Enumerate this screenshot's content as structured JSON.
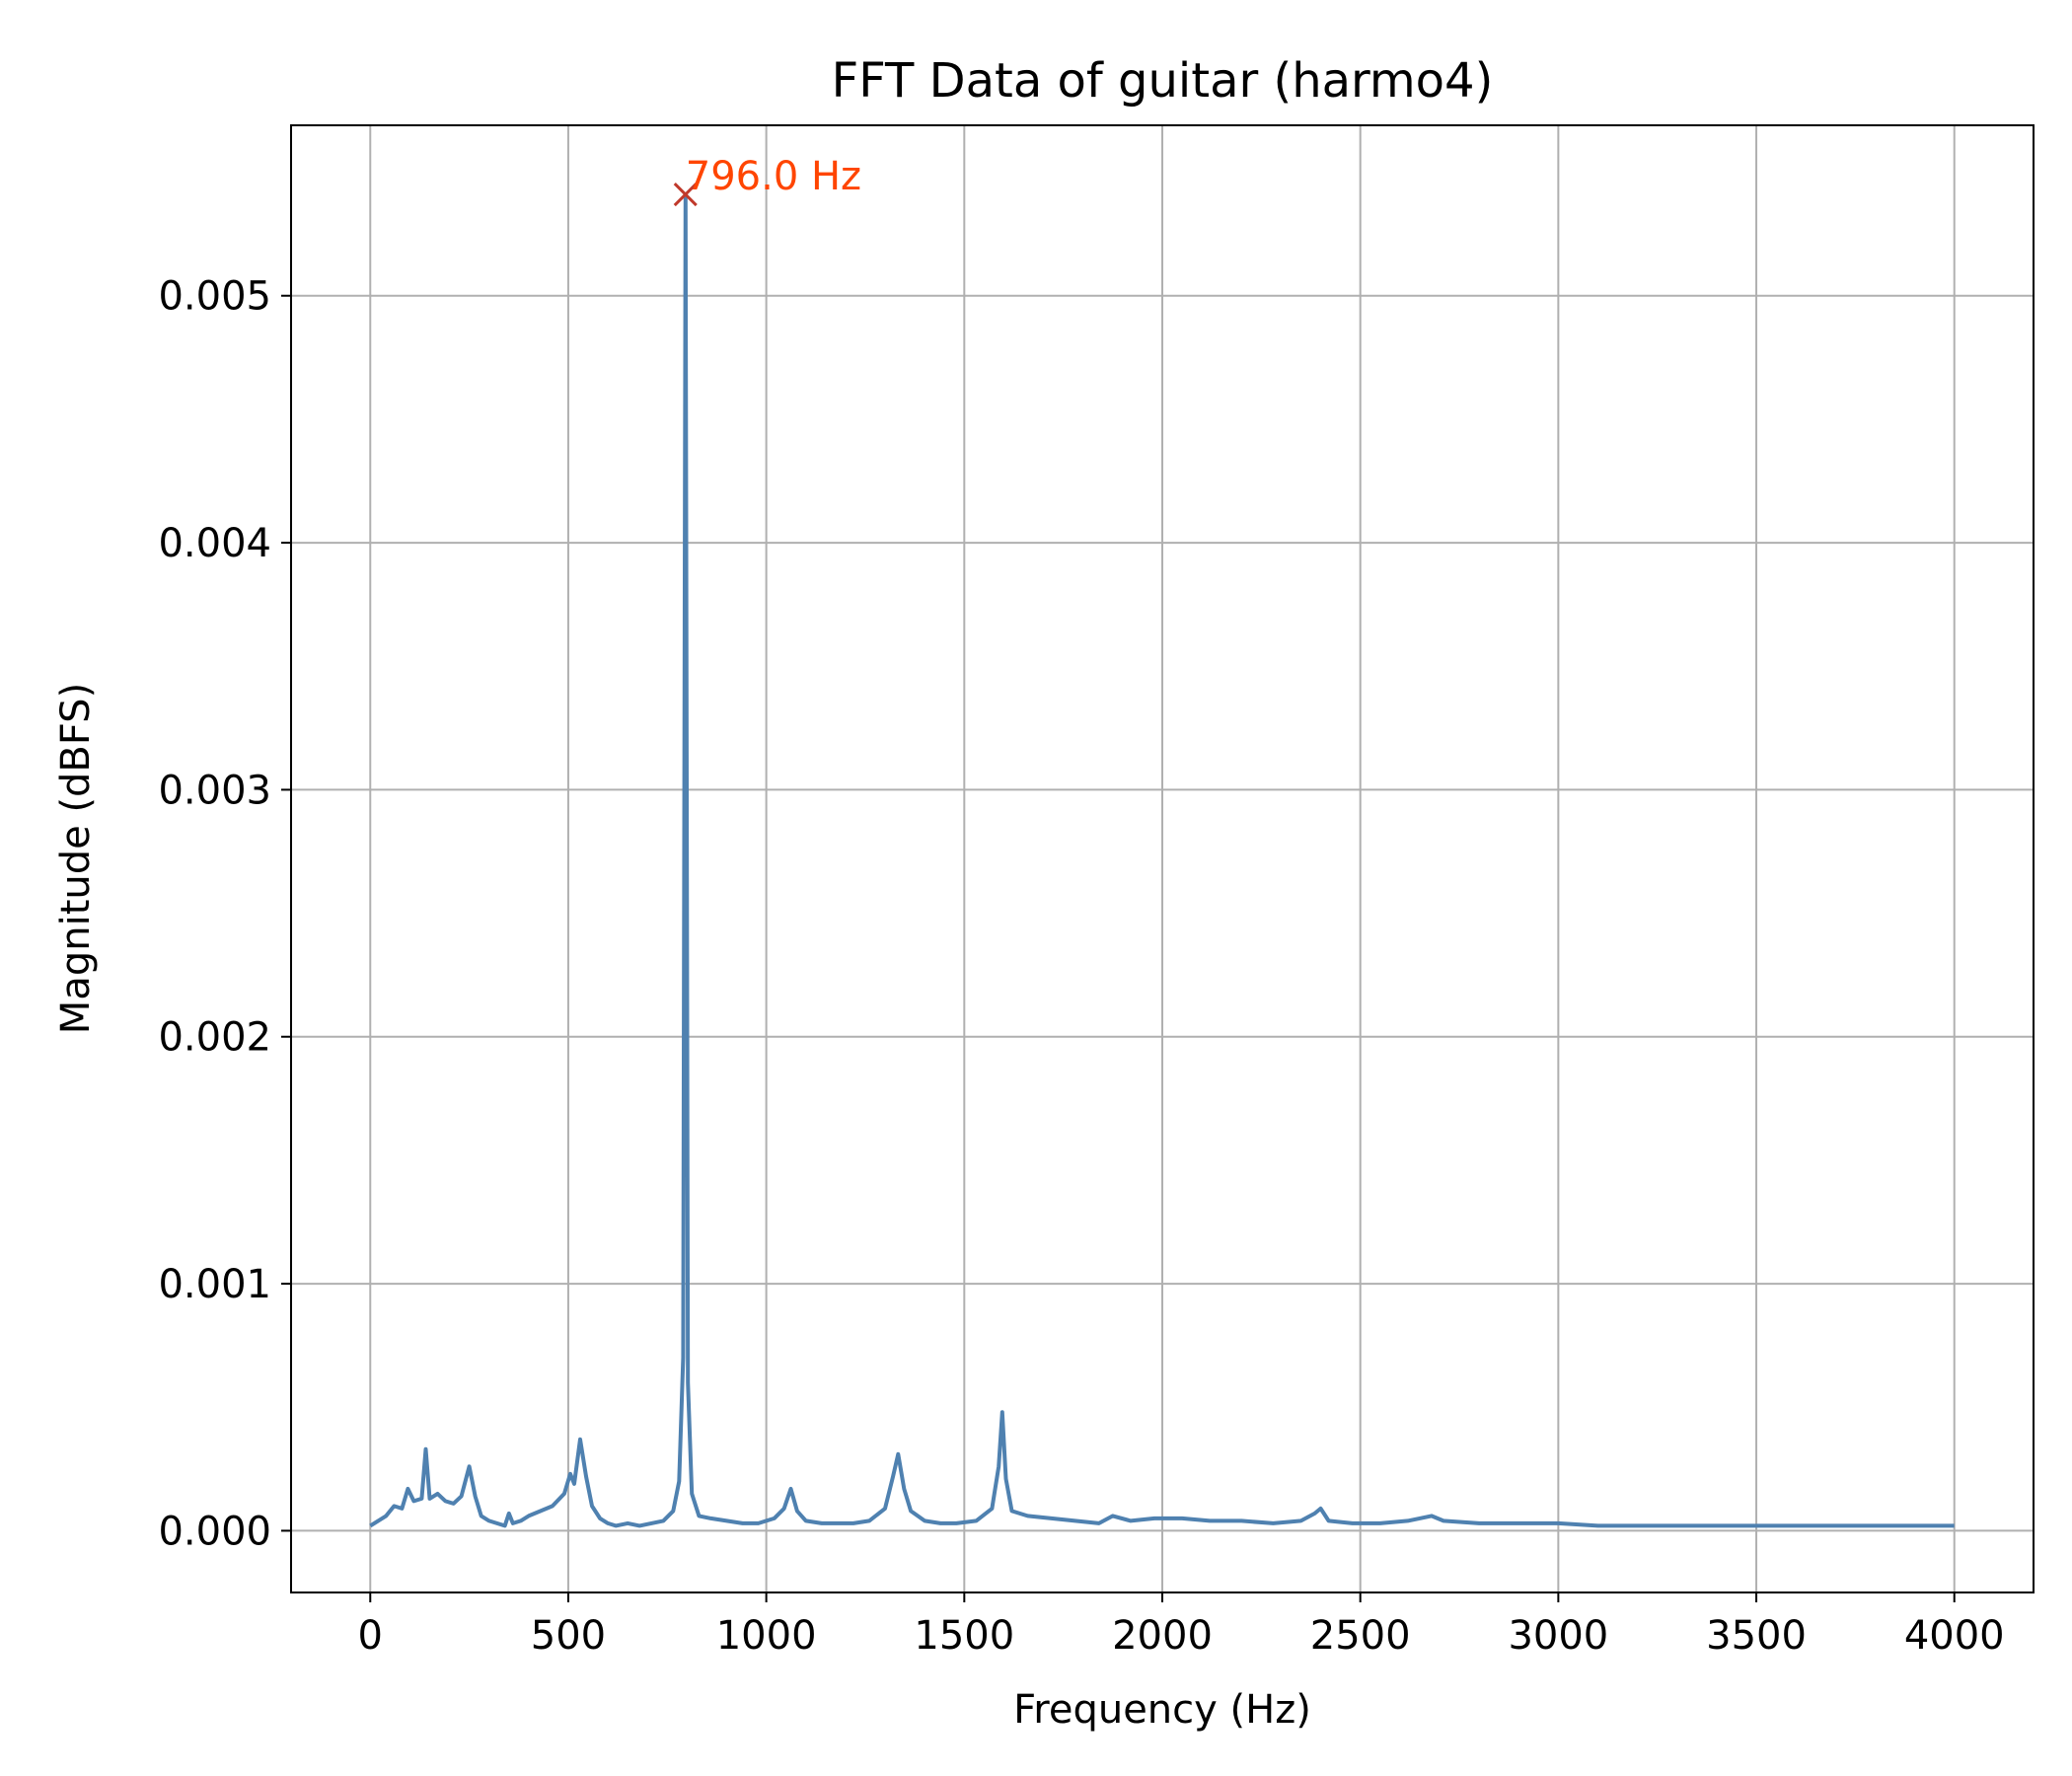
{
  "chart_data": {
    "type": "line",
    "title": "FFT Data of guitar (harmo4)",
    "xlabel": "Frequency (Hz)",
    "ylabel": "Magnitude (dBFS)",
    "xlim": [
      -200,
      4200
    ],
    "ylim": [
      -0.00025,
      0.00569
    ],
    "xticks": [
      0,
      500,
      1000,
      1500,
      2000,
      2500,
      3000,
      3500,
      4000
    ],
    "xtick_labels": [
      "0",
      "500",
      "1000",
      "1500",
      "2000",
      "2500",
      "3000",
      "3500",
      "4000"
    ],
    "yticks": [
      0,
      0.001,
      0.002,
      0.003,
      0.004,
      0.005
    ],
    "ytick_labels": [
      "0.000",
      "0.001",
      "0.002",
      "0.003",
      "0.004",
      "0.005"
    ],
    "grid": true,
    "colors": {
      "line": "#4f81b0",
      "marker": "#c0392b",
      "annotation": "#ff4500",
      "grid": "#b0b0b0"
    },
    "series": [
      {
        "points": [
          [
            0,
            2e-05
          ],
          [
            20,
            4e-05
          ],
          [
            40,
            6e-05
          ],
          [
            60,
            0.0001
          ],
          [
            80,
            9e-05
          ],
          [
            95,
            0.00017
          ],
          [
            110,
            0.00012
          ],
          [
            130,
            0.00013
          ],
          [
            140,
            0.00033
          ],
          [
            150,
            0.00013
          ],
          [
            170,
            0.00015
          ],
          [
            190,
            0.00012
          ],
          [
            210,
            0.00011
          ],
          [
            230,
            0.00014
          ],
          [
            250,
            0.00026
          ],
          [
            265,
            0.00014
          ],
          [
            280,
            6e-05
          ],
          [
            300,
            4e-05
          ],
          [
            320,
            3e-05
          ],
          [
            340,
            2e-05
          ],
          [
            350,
            7e-05
          ],
          [
            360,
            3e-05
          ],
          [
            380,
            4e-05
          ],
          [
            400,
            6e-05
          ],
          [
            430,
            8e-05
          ],
          [
            460,
            0.0001
          ],
          [
            490,
            0.00015
          ],
          [
            505,
            0.00023
          ],
          [
            515,
            0.00019
          ],
          [
            530,
            0.00037
          ],
          [
            545,
            0.00022
          ],
          [
            560,
            0.0001
          ],
          [
            580,
            5e-05
          ],
          [
            600,
            3e-05
          ],
          [
            620,
            2e-05
          ],
          [
            650,
            3e-05
          ],
          [
            680,
            2e-05
          ],
          [
            710,
            3e-05
          ],
          [
            740,
            4e-05
          ],
          [
            765,
            8e-05
          ],
          [
            780,
            0.0002
          ],
          [
            790,
            0.0007
          ],
          [
            796,
            0.00541
          ],
          [
            802,
            0.0006
          ],
          [
            812,
            0.00015
          ],
          [
            830,
            6e-05
          ],
          [
            860,
            5e-05
          ],
          [
            900,
            4e-05
          ],
          [
            940,
            3e-05
          ],
          [
            980,
            3e-05
          ],
          [
            1020,
            5e-05
          ],
          [
            1045,
            9e-05
          ],
          [
            1062,
            0.00017
          ],
          [
            1078,
            8e-05
          ],
          [
            1100,
            4e-05
          ],
          [
            1140,
            3e-05
          ],
          [
            1180,
            3e-05
          ],
          [
            1220,
            3e-05
          ],
          [
            1260,
            4e-05
          ],
          [
            1300,
            9e-05
          ],
          [
            1320,
            0.00022
          ],
          [
            1333,
            0.00031
          ],
          [
            1348,
            0.00017
          ],
          [
            1365,
            8e-05
          ],
          [
            1400,
            4e-05
          ],
          [
            1440,
            3e-05
          ],
          [
            1480,
            3e-05
          ],
          [
            1530,
            4e-05
          ],
          [
            1570,
            9e-05
          ],
          [
            1587,
            0.00026
          ],
          [
            1596,
            0.00048
          ],
          [
            1605,
            0.00021
          ],
          [
            1620,
            8e-05
          ],
          [
            1660,
            6e-05
          ],
          [
            1720,
            5e-05
          ],
          [
            1780,
            4e-05
          ],
          [
            1840,
            3e-05
          ],
          [
            1875,
            6e-05
          ],
          [
            1920,
            4e-05
          ],
          [
            1980,
            5e-05
          ],
          [
            2050,
            5e-05
          ],
          [
            2120,
            4e-05
          ],
          [
            2200,
            4e-05
          ],
          [
            2280,
            3e-05
          ],
          [
            2350,
            4e-05
          ],
          [
            2385,
            7e-05
          ],
          [
            2400,
            9e-05
          ],
          [
            2420,
            4e-05
          ],
          [
            2480,
            3e-05
          ],
          [
            2550,
            3e-05
          ],
          [
            2620,
            4e-05
          ],
          [
            2680,
            6e-05
          ],
          [
            2710,
            4e-05
          ],
          [
            2800,
            3e-05
          ],
          [
            2900,
            3e-05
          ],
          [
            3000,
            3e-05
          ],
          [
            3100,
            2e-05
          ],
          [
            3200,
            2e-05
          ],
          [
            3300,
            2e-05
          ],
          [
            3400,
            2e-05
          ],
          [
            3500,
            2e-05
          ],
          [
            3600,
            2e-05
          ],
          [
            3700,
            2e-05
          ],
          [
            3800,
            2e-05
          ],
          [
            3900,
            2e-05
          ],
          [
            4000,
            2e-05
          ]
        ]
      }
    ],
    "peak": {
      "x": 796,
      "y": 0.00541,
      "label": "796.0 Hz"
    }
  }
}
